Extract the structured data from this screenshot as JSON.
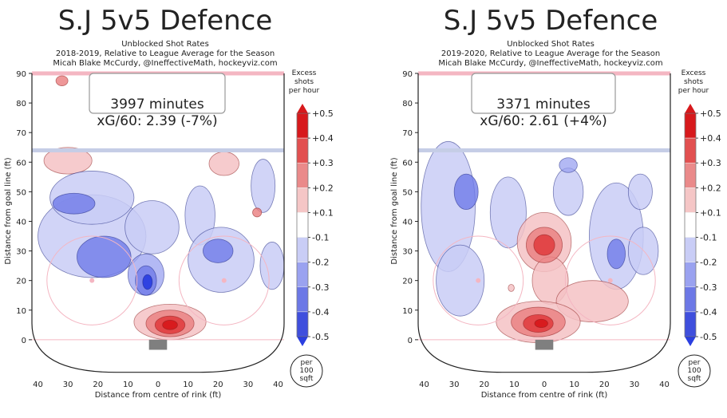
{
  "chart_data": [
    {
      "type": "heatmap",
      "title": "S.J 5v5 Defence",
      "subtitle_lines": [
        "Unblocked Shot Rates",
        "2018-2019, Relative to League Average for the Season",
        "Micah Blake McCurdy, @IneffectiveMath, hockeyviz.com"
      ],
      "minutes_label": "3997 minutes",
      "xg_label": "xG/60: 2.39 (-7%)",
      "xlabel": "Distance from centre of rink (ft)",
      "ylabel": "Distance from goal line (ft)",
      "x_ticks": [
        "40",
        "30",
        "20",
        "10",
        "0",
        "10",
        "20",
        "30",
        "40"
      ],
      "y_ticks": [
        "0",
        "10",
        "20",
        "30",
        "40",
        "50",
        "60",
        "70",
        "80",
        "90"
      ],
      "xlim": [
        42,
        -42
      ],
      "ylim": [
        -3,
        90
      ],
      "blobs": [
        {
          "cx": 30,
          "cy": 60.5,
          "rx": 8,
          "ry": 4.5,
          "level": 0.2
        },
        {
          "cx": 32,
          "cy": 87.5,
          "rx": 2,
          "ry": 1.7,
          "level": 0.3
        },
        {
          "cx": 22,
          "cy": 35,
          "rx": 18,
          "ry": 14,
          "level": -0.15
        },
        {
          "cx": 22,
          "cy": 48,
          "rx": 14,
          "ry": 9,
          "level": -0.15
        },
        {
          "cx": 18,
          "cy": 28,
          "rx": 9,
          "ry": 7,
          "level": -0.25
        },
        {
          "cx": 28,
          "cy": 46,
          "rx": 7,
          "ry": 3.5,
          "level": -0.3
        },
        {
          "cx": 2,
          "cy": 38,
          "rx": 9,
          "ry": 9,
          "level": -0.15
        },
        {
          "cx": 4,
          "cy": 22,
          "rx": 6,
          "ry": 7,
          "level": -0.2
        },
        {
          "cx": 4,
          "cy": 20,
          "rx": 3.5,
          "ry": 5,
          "level": -0.3
        },
        {
          "cx": 3.5,
          "cy": 19.5,
          "rx": 1.6,
          "ry": 2.5,
          "level": -0.45
        },
        {
          "cx": -14,
          "cy": 42,
          "rx": 5,
          "ry": 10,
          "level": -0.15
        },
        {
          "cx": -21,
          "cy": 27,
          "rx": 11,
          "ry": 11,
          "level": -0.15
        },
        {
          "cx": -20,
          "cy": 30,
          "rx": 5,
          "ry": 4,
          "level": -0.25
        },
        {
          "cx": -35,
          "cy": 52,
          "rx": 4,
          "ry": 9,
          "level": -0.15
        },
        {
          "cx": -38,
          "cy": 25,
          "rx": 4,
          "ry": 8,
          "level": -0.15
        },
        {
          "cx": -22,
          "cy": 59.5,
          "rx": 5,
          "ry": 4,
          "level": 0.2
        },
        {
          "cx": -33,
          "cy": 43,
          "rx": 1.5,
          "ry": 1.5,
          "level": 0.25
        },
        {
          "cx": -4,
          "cy": 6,
          "rx": 12,
          "ry": 6,
          "level": 0.15
        },
        {
          "cx": -4,
          "cy": 5.5,
          "rx": 8,
          "ry": 4.5,
          "level": 0.3
        },
        {
          "cx": -4,
          "cy": 5,
          "rx": 5,
          "ry": 3,
          "level": 0.4
        },
        {
          "cx": -4,
          "cy": 5,
          "rx": 2.5,
          "ry": 1.6,
          "level": 0.5
        }
      ]
    },
    {
      "type": "heatmap",
      "title": "S.J 5v5 Defence",
      "subtitle_lines": [
        "Unblocked Shot Rates",
        "2019-2020, Relative to League Average for the Season",
        "Micah Blake McCurdy, @IneffectiveMath, hockeyviz.com"
      ],
      "minutes_label": "3371 minutes",
      "xg_label": "xG/60: 2.61 (+4%)",
      "xlabel": "Distance from centre of rink (ft)",
      "ylabel": "Distance from goal line (ft)",
      "x_ticks": [
        "40",
        "30",
        "20",
        "10",
        "0",
        "10",
        "20",
        "30",
        "40"
      ],
      "y_ticks": [
        "0",
        "10",
        "20",
        "30",
        "40",
        "50",
        "60",
        "70",
        "80",
        "90"
      ],
      "xlim": [
        42,
        -42
      ],
      "ylim": [
        -3,
        90
      ],
      "blobs": [
        {
          "cx": 32,
          "cy": 45,
          "rx": 9,
          "ry": 22,
          "level": -0.15
        },
        {
          "cx": 28,
          "cy": 20,
          "rx": 8,
          "ry": 12,
          "level": -0.15
        },
        {
          "cx": 26,
          "cy": 50,
          "rx": 4,
          "ry": 6,
          "level": -0.3
        },
        {
          "cx": 12,
          "cy": 43,
          "rx": 6,
          "ry": 12,
          "level": -0.15
        },
        {
          "cx": -8,
          "cy": 50,
          "rx": 5,
          "ry": 8,
          "level": -0.15
        },
        {
          "cx": -8,
          "cy": 59,
          "rx": 3,
          "ry": 2.5,
          "level": -0.2
        },
        {
          "cx": -24,
          "cy": 35,
          "rx": 9,
          "ry": 18,
          "level": -0.15
        },
        {
          "cx": -24,
          "cy": 29,
          "rx": 3,
          "ry": 5,
          "level": -0.25
        },
        {
          "cx": -33,
          "cy": 30,
          "rx": 5,
          "ry": 8,
          "level": -0.15
        },
        {
          "cx": -32,
          "cy": 50,
          "rx": 4,
          "ry": 6,
          "level": -0.15
        },
        {
          "cx": 0,
          "cy": 33,
          "rx": 9,
          "ry": 10,
          "level": 0.15
        },
        {
          "cx": -2,
          "cy": 20,
          "rx": 6,
          "ry": 8,
          "level": 0.15
        },
        {
          "cx": -16,
          "cy": 13,
          "rx": 12,
          "ry": 7,
          "level": 0.15
        },
        {
          "cx": 0,
          "cy": 32,
          "rx": 6,
          "ry": 6,
          "level": 0.3
        },
        {
          "cx": 0,
          "cy": 32,
          "rx": 3.5,
          "ry": 3.5,
          "level": 0.4
        },
        {
          "cx": 11,
          "cy": 17.5,
          "rx": 1,
          "ry": 1.2,
          "level": 0.2
        },
        {
          "cx": 2,
          "cy": 6,
          "rx": 14,
          "ry": 7,
          "level": 0.15
        },
        {
          "cx": 2,
          "cy": 6,
          "rx": 9,
          "ry": 5,
          "level": 0.3
        },
        {
          "cx": 2,
          "cy": 5.5,
          "rx": 5,
          "ry": 3,
          "level": 0.4
        },
        {
          "cx": 1,
          "cy": 5.5,
          "rx": 2.2,
          "ry": 1.4,
          "level": 0.5
        }
      ]
    }
  ],
  "colorbar": {
    "title_lines": [
      "Excess",
      "shots",
      "per hour"
    ],
    "tick_labels": [
      "+0.5",
      "+0.4",
      "+0.3",
      "+0.2",
      "+0.1",
      "-0.1",
      "-0.2",
      "-0.3",
      "-0.4",
      "-0.5"
    ],
    "band_colors": [
      "#d7191c",
      "#e25050",
      "#ea8a8a",
      "#f5c6c6",
      "#ffffff",
      "#c9cdf6",
      "#9aa2f0",
      "#6c78e6",
      "#3f4fdd"
    ]
  },
  "scale_note_lines": [
    "per",
    "100",
    "sqft"
  ],
  "colors": {
    "positive": "#d7191c",
    "negative": "#2b3fe0",
    "goal_line": "#f4b6c2",
    "blue_line": "#c5cde6",
    "net": "#7f7f7f",
    "faceoff": "#f4b6c2",
    "boards": "#222222"
  }
}
